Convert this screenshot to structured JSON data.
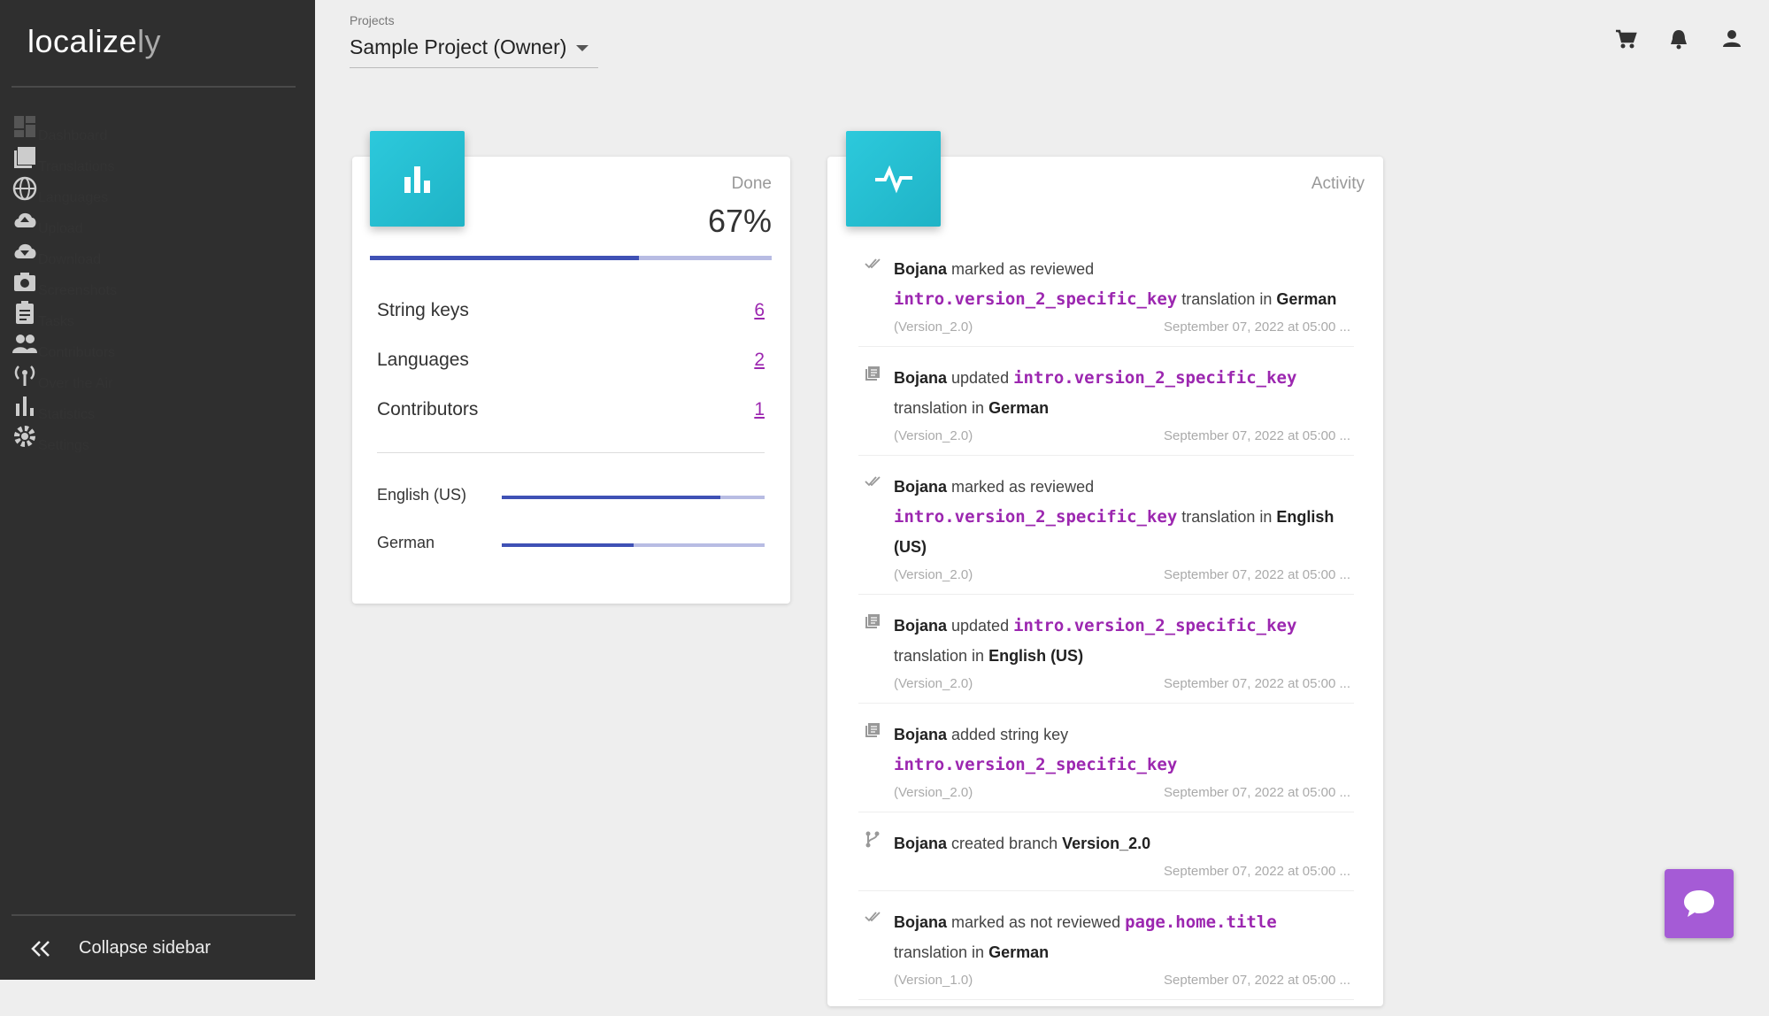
{
  "logo": {
    "main": "localize",
    "suffix": "ly"
  },
  "sidebar": {
    "items": [
      "Dashboard",
      "Translations",
      "Languages",
      "Upload",
      "Download",
      "Screenshots",
      "Tasks",
      "Contributors",
      "Over the Air",
      "Statistics",
      "Settings"
    ],
    "collapse": "Collapse sidebar"
  },
  "header": {
    "projects_label": "Projects",
    "project": "Sample Project (Owner)"
  },
  "done_card": {
    "label": "Done",
    "percent": 67,
    "percent_label": "67%",
    "stats": [
      {
        "label": "String keys",
        "value": 6
      },
      {
        "label": "Languages",
        "value": 2
      },
      {
        "label": "Contributors",
        "value": 1
      }
    ],
    "languages": [
      {
        "name": "English (US)",
        "progress": 83
      },
      {
        "name": "German",
        "progress": 50
      }
    ]
  },
  "activity_card": {
    "label": "Activity",
    "entries": [
      {
        "segments": [
          {
            "bold": "Bojana"
          },
          {
            "text": " marked as reviewed "
          },
          {
            "code": "intro.version_2_specific_key"
          },
          {
            "text": " translation in "
          },
          {
            "bold": "German"
          }
        ],
        "branch": "(Version_2.0)",
        "date": "September 07, 2022 at 05:00 ..."
      },
      {
        "segments": [
          {
            "bold": "Bojana"
          },
          {
            "text": " updated "
          },
          {
            "code": "intro.version_2_specific_key"
          },
          {
            "text": " translation in "
          },
          {
            "bold": "German"
          }
        ],
        "branch": "(Version_2.0)",
        "date": "September 07, 2022 at 05:00 ..."
      },
      {
        "segments": [
          {
            "bold": "Bojana"
          },
          {
            "text": " marked as reviewed "
          },
          {
            "code": "intro.version_2_specific_key"
          },
          {
            "text": " translation in "
          },
          {
            "bold": "English (US)"
          }
        ],
        "branch": "(Version_2.0)",
        "date": "September 07, 2022 at 05:00 ..."
      },
      {
        "segments": [
          {
            "bold": "Bojana"
          },
          {
            "text": " updated "
          },
          {
            "code": "intro.version_2_specific_key"
          },
          {
            "text": " translation in "
          },
          {
            "bold": "English (US)"
          }
        ],
        "branch": "(Version_2.0)",
        "date": "September 07, 2022 at 05:00 ..."
      },
      {
        "segments": [
          {
            "bold": "Bojana"
          },
          {
            "text": " added string key "
          },
          {
            "code": "intro.version_2_specific_key"
          }
        ],
        "branch": "(Version_2.0)",
        "date": "September 07, 2022 at 05:00 ..."
      },
      {
        "segments": [
          {
            "bold": "Bojana"
          },
          {
            "text": " created branch "
          },
          {
            "bold": "Version_2.0"
          }
        ],
        "date": "September 07, 2022 at 05:00 ..."
      },
      {
        "segments": [
          {
            "bold": "Bojana"
          },
          {
            "text": " marked as not reviewed "
          },
          {
            "code": "page.home.title"
          },
          {
            "text": " translation in "
          },
          {
            "bold": "German"
          }
        ],
        "branch": "(Version_1.0)",
        "date": "September 07, 2022 at 05:00 ..."
      }
    ]
  }
}
